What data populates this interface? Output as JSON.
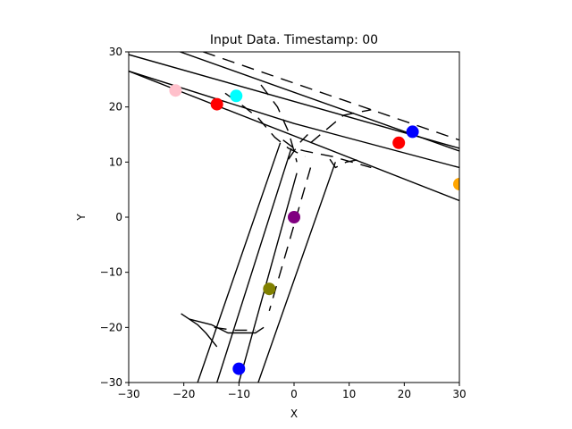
{
  "chart_data": {
    "type": "scatter",
    "title": "Input Data. Timestamp: 00",
    "xlabel": "X",
    "ylabel": "Y",
    "xlim": [
      -30,
      30
    ],
    "ylim": [
      -30,
      30
    ],
    "xticks": [
      -30,
      -20,
      -10,
      0,
      10,
      20,
      30
    ],
    "yticks": [
      -30,
      -20,
      -10,
      0,
      10,
      20,
      30
    ],
    "grid": false,
    "legend": "none",
    "points": [
      {
        "x": -21.5,
        "y": 23.0,
        "color": "#ffc0cb"
      },
      {
        "x": -14.0,
        "y": 20.5,
        "color": "#ff0000"
      },
      {
        "x": -10.5,
        "y": 22.0,
        "color": "#00ffff"
      },
      {
        "x": 19.0,
        "y": 13.5,
        "color": "#ff0000"
      },
      {
        "x": 21.5,
        "y": 15.5,
        "color": "#0000ff"
      },
      {
        "x": 30.0,
        "y": 6.0,
        "color": "#ffa500"
      },
      {
        "x": 0.0,
        "y": 0.0,
        "color": "#800080"
      },
      {
        "x": -4.5,
        "y": -13.0,
        "color": "#808000"
      },
      {
        "x": -10.0,
        "y": -27.5,
        "color": "#0000ff"
      }
    ],
    "lines": [
      {
        "style": "solid",
        "points": [
          [
            -30,
            29.5
          ],
          [
            30,
            12.5
          ]
        ]
      },
      {
        "style": "solid",
        "points": [
          [
            -30,
            26.5
          ],
          [
            0,
            17.0
          ],
          [
            30,
            9.0
          ]
        ]
      },
      {
        "style": "solid",
        "points": [
          [
            -30,
            26.5
          ],
          [
            30,
            3.0
          ]
        ]
      },
      {
        "style": "solid",
        "points": [
          [
            -23.5,
            31
          ],
          [
            30,
            12.0
          ]
        ]
      },
      {
        "style": "dashed",
        "points": [
          [
            -16.5,
            30
          ],
          [
            30,
            14.0
          ]
        ]
      },
      {
        "style": "solid",
        "points": [
          [
            -2.5,
            13.5
          ],
          [
            -17.5,
            -30
          ]
        ]
      },
      {
        "style": "solid",
        "points": [
          [
            -0.5,
            12.5
          ],
          [
            -14.0,
            -30
          ]
        ]
      },
      {
        "style": "solid",
        "points": [
          [
            0.5,
            8.0
          ],
          [
            -10.0,
            -30
          ]
        ]
      },
      {
        "style": "solid",
        "points": [
          [
            7.5,
            10.0
          ],
          [
            -6.5,
            -30
          ]
        ]
      },
      {
        "style": "dashed",
        "points": [
          [
            3.0,
            9.0
          ],
          [
            -4.5,
            -17.0
          ]
        ]
      },
      {
        "style": "solid",
        "points": [
          [
            -20.5,
            -17.5
          ],
          [
            -17.5,
            -19.5
          ],
          [
            -16.0,
            -21.0
          ],
          [
            -14.0,
            -23.5
          ]
        ]
      },
      {
        "style": "solid",
        "points": [
          [
            -19.0,
            -18.5
          ],
          [
            -15.0,
            -19.5
          ],
          [
            -12.0,
            -21.0
          ],
          [
            -7.0,
            -21.0
          ],
          [
            -5.5,
            -20.0
          ]
        ]
      },
      {
        "style": "dashed",
        "points": [
          [
            -14.5,
            -20.0
          ],
          [
            -11.0,
            -20.5
          ],
          [
            -7.0,
            -20.5
          ]
        ]
      },
      {
        "style": "dashed",
        "points": [
          [
            -12.5,
            22.5
          ],
          [
            -9.0,
            20.0
          ],
          [
            -6.5,
            18.0
          ],
          [
            -3.5,
            14.5
          ],
          [
            -1.0,
            12.5
          ],
          [
            2.0,
            11.0
          ]
        ]
      },
      {
        "style": "dashed",
        "points": [
          [
            -6.0,
            24.0
          ],
          [
            -3.0,
            20.0
          ],
          [
            -1.0,
            15.5
          ],
          [
            0.0,
            12.0
          ],
          [
            0.5,
            10.0
          ]
        ]
      },
      {
        "style": "dashed",
        "points": [
          [
            -2.0,
            14.0
          ],
          [
            0.0,
            12.5
          ],
          [
            2.0,
            12.0
          ],
          [
            7.0,
            11.0
          ],
          [
            14.0,
            9.0
          ]
        ]
      },
      {
        "style": "dashed",
        "points": [
          [
            3.0,
            13.5
          ],
          [
            6.0,
            16.0
          ],
          [
            9.0,
            18.5
          ],
          [
            14.0,
            19.5
          ]
        ]
      },
      {
        "style": "dashed",
        "points": [
          [
            -1.0,
            10.5
          ],
          [
            1.0,
            13.5
          ],
          [
            2.5,
            15.0
          ]
        ]
      },
      {
        "style": "dashed",
        "points": [
          [
            6.5,
            10.5
          ],
          [
            7.5,
            9.0
          ],
          [
            9.5,
            10.0
          ],
          [
            12.0,
            10.5
          ]
        ]
      }
    ]
  }
}
